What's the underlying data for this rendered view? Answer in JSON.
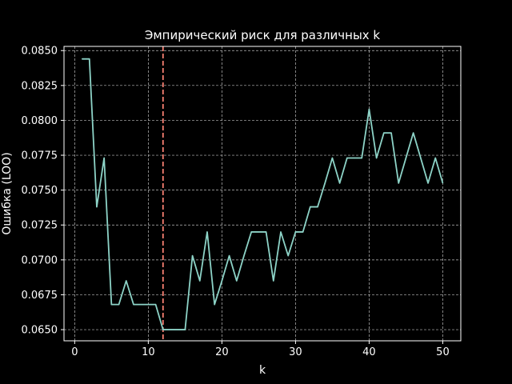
{
  "chart_data": {
    "type": "line",
    "title": "Эмпирический риск для различных k",
    "xlabel": "k",
    "ylabel": "Ошибка (LOO)",
    "xlim": [
      -1.45,
      52.45
    ],
    "ylim": [
      0.0642,
      0.0853
    ],
    "xticks": [
      0,
      10,
      20,
      30,
      40,
      50
    ],
    "xtick_labels": [
      "0",
      "10",
      "20",
      "30",
      "40",
      "50"
    ],
    "yticks": [
      0.065,
      0.0675,
      0.07,
      0.0725,
      0.075,
      0.0775,
      0.08,
      0.0825,
      0.085
    ],
    "ytick_labels": [
      "0.0650",
      "0.0675",
      "0.0700",
      "0.0725",
      "0.0750",
      "0.0775",
      "0.0800",
      "0.0825",
      "0.0850"
    ],
    "grid": true,
    "background": "#000000",
    "series": [
      {
        "color": "#8dd3c7",
        "x": [
          1,
          2,
          3,
          4,
          5,
          6,
          7,
          8,
          9,
          10,
          11,
          12,
          13,
          14,
          15,
          16,
          17,
          18,
          19,
          20,
          21,
          22,
          23,
          24,
          25,
          26,
          27,
          28,
          29,
          30,
          31,
          32,
          33,
          34,
          35,
          36,
          37,
          38,
          39,
          40,
          41,
          42,
          43,
          44,
          45,
          46,
          47,
          48,
          49,
          50
        ],
        "y": [
          0.0844,
          0.0844,
          0.0738,
          0.0773,
          0.0668,
          0.0668,
          0.0685,
          0.0668,
          0.0668,
          0.0668,
          0.0668,
          0.065,
          0.065,
          0.065,
          0.065,
          0.0703,
          0.0685,
          0.072,
          0.0668,
          0.0685,
          0.0703,
          0.0685,
          0.0703,
          0.072,
          0.072,
          0.072,
          0.0685,
          0.072,
          0.0703,
          0.072,
          0.072,
          0.0738,
          0.0738,
          0.0755,
          0.0773,
          0.0755,
          0.0773,
          0.0773,
          0.0773,
          0.0808,
          0.0773,
          0.0791,
          0.0791,
          0.0755,
          0.0773,
          0.0791,
          0.0773,
          0.0755,
          0.0773,
          0.0755
        ]
      }
    ],
    "vline": {
      "x": 12,
      "color": "#fa8072",
      "style": "dashed"
    }
  }
}
